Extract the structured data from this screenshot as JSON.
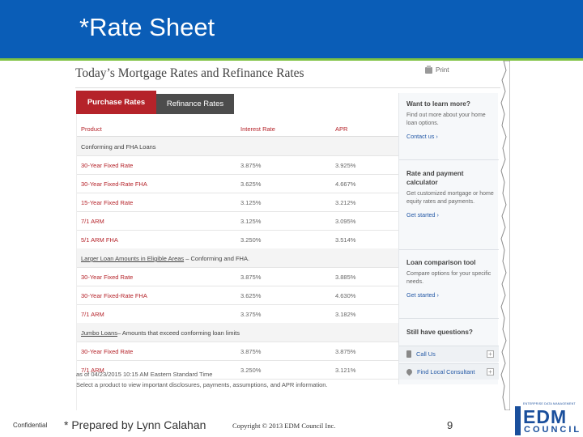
{
  "slide": {
    "title": "*Rate Sheet",
    "header_color": "#0a5db7",
    "accent_color": "#7fc242"
  },
  "page": {
    "heading": "Today’s Mortgage Rates and Refinance Rates",
    "print_label": "Print"
  },
  "tabs": [
    {
      "label": "Purchase Rates",
      "active": true
    },
    {
      "label": "Refinance Rates",
      "active": false
    }
  ],
  "table": {
    "headers": {
      "product": "Product",
      "rate": "Interest Rate",
      "apr": "APR"
    },
    "rows": [
      {
        "type": "section",
        "label": "Conforming and FHA Loans"
      },
      {
        "type": "rate",
        "product": "30-Year Fixed Rate",
        "rate": "3.875%",
        "apr": "3.925%"
      },
      {
        "type": "rate",
        "product": "30-Year Fixed-Rate FHA",
        "rate": "3.625%",
        "apr": "4.667%"
      },
      {
        "type": "rate",
        "product": "15-Year Fixed Rate",
        "rate": "3.125%",
        "apr": "3.212%"
      },
      {
        "type": "rate",
        "product": "7/1 ARM",
        "rate": "3.125%",
        "apr": "3.095%"
      },
      {
        "type": "rate",
        "product": "5/1 ARM FHA",
        "rate": "3.250%",
        "apr": "3.514%"
      },
      {
        "type": "section",
        "label_link": "Larger Loan Amounts in Eligible Areas",
        "label_rest": " – Conforming and FHA."
      },
      {
        "type": "rate",
        "product": "30-Year Fixed Rate",
        "rate": "3.875%",
        "apr": "3.885%"
      },
      {
        "type": "rate",
        "product": "30-Year Fixed-Rate FHA",
        "rate": "3.625%",
        "apr": "4.630%"
      },
      {
        "type": "rate",
        "product": "7/1 ARM",
        "rate": "3.375%",
        "apr": "3.182%"
      },
      {
        "type": "section",
        "label_link": "Jumbo Loans",
        "label_rest": "– Amounts that exceed conforming loan limits"
      },
      {
        "type": "rate",
        "product": "30-Year Fixed Rate",
        "rate": "3.875%",
        "apr": "3.875%"
      },
      {
        "type": "rate",
        "product": "7/1 ARM",
        "rate": "3.250%",
        "apr": "3.121%"
      }
    ],
    "footnote_line1": "as of 04/23/2015 10:15 AM Eastern Standard Time",
    "footnote_line2": "Select a product to view important disclosures, payments, assumptions, and APR information."
  },
  "sidebar": {
    "learn": {
      "heading": "Want to learn more?",
      "text": "Find out more about your home loan options.",
      "link": "Contact us ›"
    },
    "calculator": {
      "heading": "Rate and payment calculator",
      "text": "Get customized mortgage or home equity rates and payments.",
      "link": "Get started ›"
    },
    "comparison": {
      "heading": "Loan comparison tool",
      "text": "Compare options for your specific needs.",
      "link": "Get started ›"
    },
    "questions": {
      "heading": "Still have questions?"
    },
    "call_us": "Call Us",
    "find_consultant": "Find Local Consultant"
  },
  "footer": {
    "confidential": "Confidential",
    "prepared": "* Prepared by Lynn Calahan",
    "copyright": "Copyright © 2013 EDM Council Inc.",
    "page_number": "9"
  },
  "logo": {
    "tagline": "ENTERPRISE DATA MANAGEMENT",
    "main": "EDM",
    "sub": "COUNCIL"
  }
}
